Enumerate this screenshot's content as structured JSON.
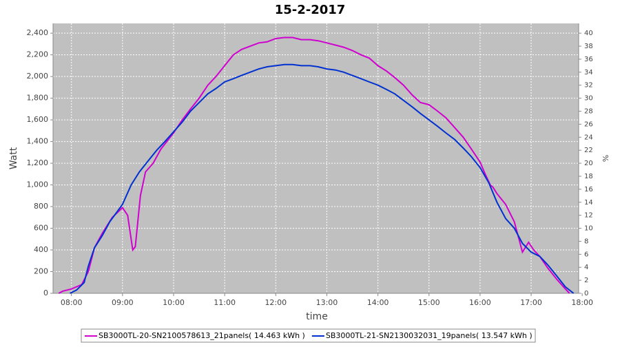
{
  "chart_data": {
    "type": "line",
    "title": "15-2-2017",
    "xlabel": "time",
    "ylabel": "Watt",
    "y2label": "%",
    "xlim": [
      7.64,
      17.93
    ],
    "xticks": [
      {
        "value": 8,
        "label": "08:00"
      },
      {
        "value": 9,
        "label": "09:00"
      },
      {
        "value": 10,
        "label": "10:00"
      },
      {
        "value": 11,
        "label": "11:00"
      },
      {
        "value": 12,
        "label": "12:00"
      },
      {
        "value": 13,
        "label": "13:00"
      },
      {
        "value": 14,
        "label": "14:00"
      },
      {
        "value": 15,
        "label": "15:00"
      },
      {
        "value": 16,
        "label": "16:00"
      },
      {
        "value": 17,
        "label": "17:00"
      },
      {
        "value": 18,
        "label": "18:00"
      }
    ],
    "ylim": [
      0,
      2490
    ],
    "yticks": [
      0,
      200,
      400,
      600,
      800,
      {
        "value": 1000,
        "label": "1,000"
      },
      {
        "value": 1200,
        "label": "1,200"
      },
      {
        "value": 1400,
        "label": "1,400"
      },
      {
        "value": 1600,
        "label": "1,600"
      },
      {
        "value": 1800,
        "label": "1,800"
      },
      {
        "value": 2000,
        "label": "2,000"
      },
      {
        "value": 2200,
        "label": "2,200"
      },
      {
        "value": 2400,
        "label": "2,400"
      }
    ],
    "y2lim": [
      0,
      41.5
    ],
    "y2ticks": [
      0,
      2,
      4,
      6,
      8,
      10,
      12,
      14,
      16,
      18,
      20,
      22,
      24,
      26,
      28,
      30,
      32,
      34,
      36,
      38,
      40
    ],
    "grid": true,
    "legend": "bottom",
    "series": [
      {
        "name": "SB3000TL-20-SN2100578613_21panels( 14.463 kWh )",
        "color": "#d000d0",
        "x": [
          7.75,
          7.83,
          8.0,
          8.2,
          8.33,
          8.45,
          8.6,
          8.8,
          9.0,
          9.1,
          9.2,
          9.25,
          9.35,
          9.45,
          9.6,
          9.75,
          10.0,
          10.17,
          10.33,
          10.5,
          10.67,
          10.83,
          11.0,
          11.17,
          11.33,
          11.5,
          11.67,
          11.83,
          12.0,
          12.17,
          12.33,
          12.5,
          12.67,
          12.83,
          13.0,
          13.17,
          13.33,
          13.5,
          13.67,
          13.83,
          14.0,
          14.17,
          14.33,
          14.5,
          14.67,
          14.83,
          15.0,
          15.17,
          15.33,
          15.5,
          15.67,
          15.83,
          16.0,
          16.1,
          16.2,
          16.25,
          16.33,
          16.5,
          16.67,
          16.83,
          16.95,
          17.05,
          17.17,
          17.33,
          17.5,
          17.67,
          17.75
        ],
        "values": [
          0,
          20,
          40,
          80,
          200,
          420,
          550,
          700,
          790,
          720,
          400,
          430,
          900,
          1120,
          1200,
          1330,
          1480,
          1600,
          1700,
          1800,
          1920,
          2000,
          2100,
          2200,
          2250,
          2280,
          2310,
          2320,
          2350,
          2360,
          2360,
          2340,
          2340,
          2330,
          2310,
          2290,
          2270,
          2240,
          2200,
          2170,
          2100,
          2050,
          1990,
          1920,
          1830,
          1760,
          1740,
          1680,
          1620,
          1530,
          1440,
          1330,
          1210,
          1100,
          1000,
          980,
          920,
          820,
          660,
          380,
          470,
          400,
          340,
          230,
          130,
          40,
          0
        ]
      },
      {
        "name": "SB3000TL-21-SN2130032031_19panels( 13.547 kWh )",
        "color": "#0030d0",
        "x": [
          7.97,
          8.1,
          8.25,
          8.33,
          8.45,
          8.6,
          8.75,
          9.0,
          9.17,
          9.33,
          9.5,
          9.67,
          9.83,
          10.0,
          10.17,
          10.33,
          10.5,
          10.67,
          10.83,
          11.0,
          11.17,
          11.33,
          11.5,
          11.67,
          11.83,
          12.0,
          12.17,
          12.33,
          12.5,
          12.67,
          12.83,
          13.0,
          13.17,
          13.33,
          13.5,
          13.67,
          13.83,
          14.0,
          14.17,
          14.33,
          14.5,
          14.67,
          14.83,
          15.0,
          15.17,
          15.33,
          15.5,
          15.67,
          15.83,
          16.0,
          16.17,
          16.33,
          16.5,
          16.67,
          16.83,
          17.0,
          17.17,
          17.33,
          17.5,
          17.67,
          17.83
        ],
        "values": [
          0,
          30,
          100,
          250,
          420,
          530,
          660,
          820,
          1000,
          1120,
          1220,
          1320,
          1400,
          1490,
          1580,
          1680,
          1760,
          1840,
          1890,
          1950,
          1980,
          2010,
          2040,
          2070,
          2090,
          2100,
          2110,
          2110,
          2100,
          2100,
          2090,
          2070,
          2060,
          2040,
          2010,
          1980,
          1950,
          1920,
          1880,
          1840,
          1780,
          1720,
          1660,
          1600,
          1540,
          1480,
          1420,
          1340,
          1260,
          1160,
          1020,
          840,
          690,
          600,
          460,
          380,
          340,
          260,
          160,
          60,
          0
        ]
      }
    ]
  }
}
